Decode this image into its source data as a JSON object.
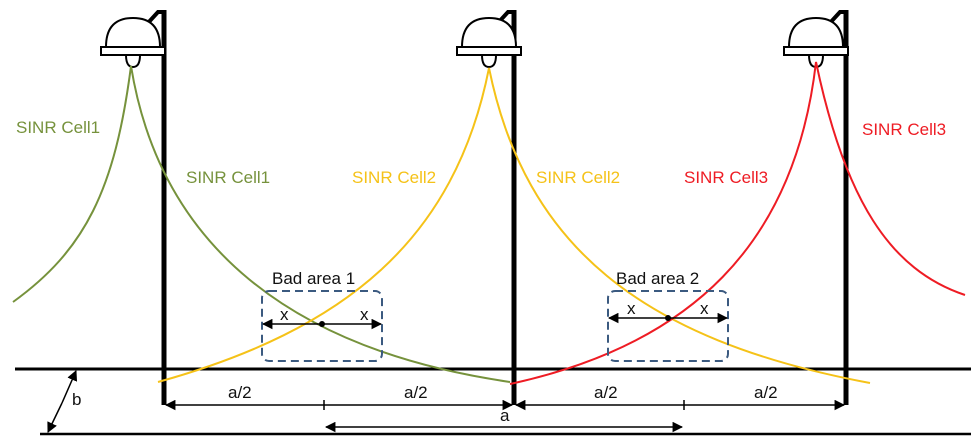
{
  "colors": {
    "cell1": "#76923c",
    "cell2": "#f5c218",
    "cell3": "#ee1c24",
    "bad_area_border": "#3b5a80",
    "structure": "#000000"
  },
  "icons": {
    "lamp": "street-lamp-icon"
  },
  "labels": {
    "cell1_left": "SINR Cell1",
    "cell1_right": "SINR Cell1",
    "cell2_left": "SINR Cell2",
    "cell2_right": "SINR Cell2",
    "cell3_left": "SINR Cell3",
    "cell3_right": "SINR Cell3",
    "bad_area_1": "Bad area 1",
    "bad_area_2": "Bad area 2",
    "x": "x",
    "half_spacing": "a/2",
    "spacing": "a",
    "road_width": "b"
  }
}
